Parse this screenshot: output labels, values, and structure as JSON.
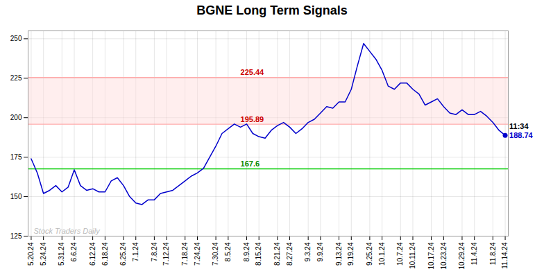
{
  "chart_data": {
    "type": "line",
    "title": "BGNE Long Term Signals",
    "categories": [
      "5.20.24",
      null,
      "5.24.24",
      null,
      null,
      "5.31.24",
      null,
      "6.6.24",
      null,
      null,
      "6.12.24",
      null,
      "6.18.24",
      null,
      null,
      "6.25.24",
      null,
      "7.1.24",
      null,
      null,
      "7.8.24",
      null,
      "7.12.24",
      null,
      null,
      "7.18.24",
      null,
      "7.24.24",
      null,
      null,
      "7.30.24",
      null,
      "8.5.24",
      null,
      null,
      "8.9.24",
      null,
      "8.15.24",
      null,
      null,
      "8.21.24",
      null,
      "8.27.24",
      null,
      null,
      "9.3.24",
      null,
      "9.9.24",
      null,
      null,
      "9.13.24",
      null,
      "9.19.24",
      null,
      null,
      "9.25.24",
      null,
      "10.1.24",
      null,
      null,
      "10.7.24",
      null,
      "10.11.24",
      null,
      null,
      "10.17.24",
      null,
      "10.23.24",
      null,
      null,
      "10.29.24",
      null,
      "11.4.24",
      null,
      null,
      "11.8.24",
      null,
      "11.14.24"
    ],
    "values": [
      174,
      165,
      152,
      154,
      157,
      153,
      156,
      167,
      157,
      154,
      155,
      153,
      153,
      160,
      162,
      157,
      150,
      146,
      145,
      148,
      148,
      152,
      153,
      154,
      157,
      160,
      163,
      165,
      168,
      175,
      182,
      190,
      193,
      196,
      194,
      196,
      190,
      188,
      187,
      192,
      195,
      197,
      194,
      190,
      193,
      197,
      199,
      203,
      207,
      206,
      210,
      210,
      218,
      233,
      247,
      242,
      237,
      230,
      220,
      218,
      222,
      222,
      218,
      215,
      208,
      210,
      212,
      207,
      203,
      202,
      205,
      202,
      202,
      204,
      201,
      197,
      192,
      188.74
    ],
    "color": "#0000cc",
    "marker": "none",
    "ylim": [
      125,
      255
    ],
    "yticks": [
      125,
      150,
      175,
      200,
      225,
      250
    ],
    "grid": true,
    "band": {
      "y1": 195.89,
      "y2": 225.44,
      "color": "#ffdddd"
    },
    "lines": [
      {
        "y": 225.44,
        "label": "225.44",
        "color": "#ffaaaa",
        "label_color": "#cc0000"
      },
      {
        "y": 195.89,
        "label": "195.89",
        "color": "#ffaaaa",
        "label_color": "#cc0000"
      },
      {
        "y": 167.6,
        "label": "167.6",
        "color": "#00cc00",
        "label_color": "#008800"
      }
    ],
    "last_point_annotations": [
      {
        "text": "11:34",
        "color": "#000000"
      },
      {
        "text": "188.74",
        "color": "#0000cc"
      }
    ],
    "watermark": {
      "text": "Stock Traders Daily",
      "color": "#bbbbbb"
    }
  }
}
